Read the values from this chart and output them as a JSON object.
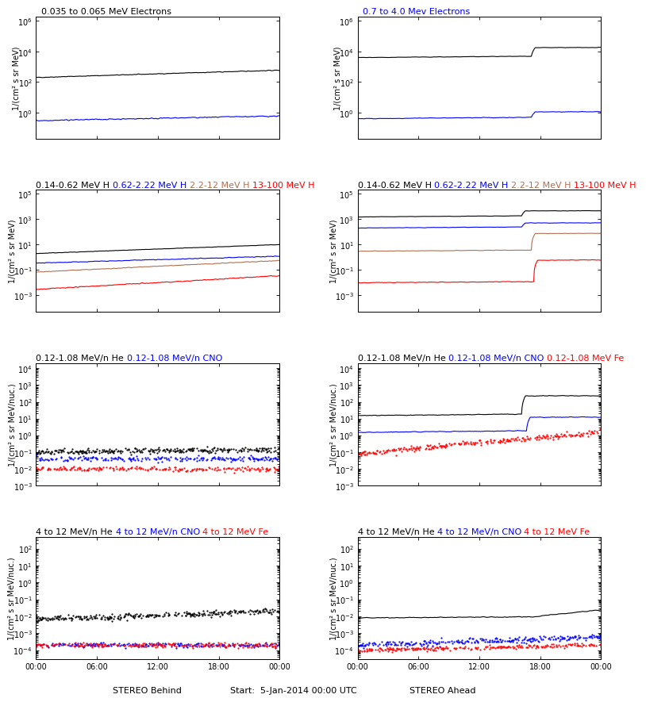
{
  "fig_width": 8.0,
  "fig_height": 9.0,
  "bg_color": "#ffffff",
  "panels": {
    "r1l": {
      "title": "0.035 to 0.065 MeV Electrons",
      "title_color": "black",
      "ylim": [
        0.02,
        2000000.0
      ],
      "ylabel": "1/(cm² s sr MeV)"
    },
    "r1r": {
      "title": "0.7 to 4.0 Mev Electrons",
      "title_color": "blue",
      "ylim": [
        0.02,
        2000000.0
      ],
      "ylabel": "1/(cm² s sr MeV)"
    },
    "r2l": {
      "ylim": [
        5e-05,
        200000.0
      ],
      "ylabel": "1/(cm² s sr MeV)"
    },
    "r2r": {
      "ylim": [
        5e-05,
        200000.0
      ],
      "ylabel": "1/(cm² s sr MeV)"
    },
    "r3l": {
      "ylim": [
        0.001,
        20000.0
      ],
      "ylabel": "1/(cm² s sr MeV/nuc.)"
    },
    "r3r": {
      "ylim": [
        0.001,
        20000.0
      ],
      "ylabel": "1/(cm² s sr MeV/nuc.)"
    },
    "r4l": {
      "ylim": [
        3e-05,
        500.0
      ],
      "ylabel": "1/(cm² s sr MeV/nuc.)"
    },
    "r4r": {
      "ylim": [
        3e-05,
        500.0
      ],
      "ylabel": "1/(cm² s sr MeV/nuc.)"
    }
  },
  "row2_titles_left": [
    {
      "text": "0.14-0.62 MeV H",
      "color": "black"
    },
    {
      "text": "0.62-2.22 MeV H",
      "color": "blue"
    },
    {
      "text": "2.2-12 MeV H",
      "color": "#b07050"
    },
    {
      "text": "13-100 MeV H",
      "color": "red"
    }
  ],
  "row3_titles_left": [
    {
      "text": "0.12-1.08 MeV/n He",
      "color": "black"
    },
    {
      "text": "0.12-1.08 MeV/n CNO",
      "color": "blue"
    }
  ],
  "row3_titles_right": [
    {
      "text": "0.12-1.08 MeV/n He",
      "color": "black"
    },
    {
      "text": "0.12-1.08 MeV/n CNO",
      "color": "blue"
    },
    {
      "text": "0.12-1.08 MeV Fe",
      "color": "red"
    }
  ],
  "row4_titles": [
    {
      "text": "4 to 12 MeV/n He",
      "color": "black"
    },
    {
      "text": "4 to 12 MeV/n CNO",
      "color": "blue"
    },
    {
      "text": "4 to 12 MeV Fe",
      "color": "red"
    }
  ],
  "xlabel_left": "STEREO Behind",
  "xlabel_right": "STEREO Ahead",
  "xlabel_center": "Start:  5-Jan-2014 00:00 UTC",
  "xtick_labels": [
    "00:00",
    "06:00",
    "12:00",
    "18:00",
    "00:00"
  ],
  "font_size": 8
}
